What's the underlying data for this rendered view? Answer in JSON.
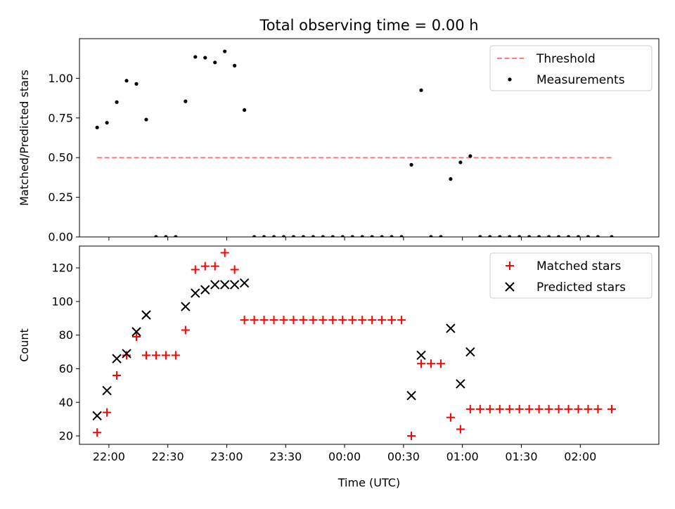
{
  "chart_data": [
    {
      "type": "line",
      "title": "Total observing time = 0.00 h",
      "xlabel": "",
      "ylabel": "Matched/Predicted stars",
      "ylim": [
        0,
        1.25
      ],
      "yticks": [
        "0.00",
        "0.25",
        "0.50",
        "0.75",
        "1.00"
      ],
      "xlim": [
        "21:45",
        "02:40"
      ],
      "legend_position": "top-right",
      "grid": false,
      "series": [
        {
          "name": "Threshold",
          "kind": "dashed-line",
          "color": "#ff7f7f",
          "x": [
            "21:54",
            "02:16"
          ],
          "y": [
            0.5,
            0.5
          ]
        },
        {
          "name": "Measurements",
          "kind": "scatter-dot",
          "color": "#000000",
          "x": [
            "21:54",
            "21:59",
            "22:04",
            "22:09",
            "22:14",
            "22:19",
            "22:24",
            "22:29",
            "22:34",
            "22:39",
            "22:44",
            "22:49",
            "22:54",
            "22:59",
            "23:04",
            "23:09",
            "23:14",
            "23:19",
            "23:24",
            "23:29",
            "23:34",
            "23:39",
            "23:44",
            "23:49",
            "23:54",
            "23:59",
            "00:04",
            "00:09",
            "00:14",
            "00:19",
            "00:24",
            "00:29",
            "00:34",
            "00:39",
            "00:44",
            "00:49",
            "00:54",
            "00:59",
            "01:04",
            "01:09",
            "01:14",
            "01:19",
            "01:24",
            "01:29",
            "01:34",
            "01:39",
            "01:44",
            "01:49",
            "01:54",
            "01:59",
            "02:04",
            "02:09",
            "02:16"
          ],
          "y": [
            0.69,
            0.72,
            0.85,
            0.985,
            0.965,
            0.74,
            0.0,
            0.0,
            0.0,
            0.855,
            1.135,
            1.13,
            1.1,
            1.17,
            1.08,
            0.8,
            0.0,
            0.0,
            0.0,
            0.0,
            0.0,
            0.0,
            0.0,
            0.0,
            0.0,
            0.0,
            0.0,
            0.0,
            0.0,
            0.0,
            0.0,
            0.0,
            0.455,
            0.925,
            0.0,
            0.0,
            0.365,
            0.47,
            0.51,
            0.0,
            0.0,
            0.0,
            0.0,
            0.0,
            0.0,
            0.0,
            0.0,
            0.0,
            0.0,
            0.0,
            0.0,
            0.0,
            0.0
          ]
        }
      ]
    },
    {
      "type": "scatter",
      "title": "",
      "xlabel": "Time (UTC)",
      "ylabel": "Count",
      "ylim": [
        15,
        133
      ],
      "yticks": [
        "20",
        "40",
        "60",
        "80",
        "100",
        "120"
      ],
      "xlim": [
        "21:45",
        "02:40"
      ],
      "xticks": [
        "22:00",
        "22:30",
        "23:00",
        "23:30",
        "00:00",
        "00:30",
        "01:00",
        "01:30",
        "02:00"
      ],
      "legend_position": "top-right",
      "grid": false,
      "series": [
        {
          "name": "Matched stars",
          "kind": "plus",
          "color": "#ff0000",
          "x": [
            "21:54",
            "21:59",
            "22:04",
            "22:09",
            "22:14",
            "22:19",
            "22:24",
            "22:29",
            "22:34",
            "22:39",
            "22:44",
            "22:49",
            "22:54",
            "22:59",
            "23:04",
            "23:09",
            "23:14",
            "23:19",
            "23:24",
            "23:29",
            "23:34",
            "23:39",
            "23:44",
            "23:49",
            "23:54",
            "23:59",
            "00:04",
            "00:09",
            "00:14",
            "00:19",
            "00:24",
            "00:29",
            "00:34",
            "00:39",
            "00:44",
            "00:49",
            "00:54",
            "00:59",
            "01:04",
            "01:09",
            "01:14",
            "01:19",
            "01:24",
            "01:29",
            "01:34",
            "01:39",
            "01:44",
            "01:49",
            "01:54",
            "01:59",
            "02:04",
            "02:09",
            "02:16"
          ],
          "y": [
            22,
            34,
            56,
            68,
            79,
            68,
            68,
            68,
            68,
            83,
            119,
            121,
            121,
            129,
            119,
            89,
            89,
            89,
            89,
            89,
            89,
            89,
            89,
            89,
            89,
            89,
            89,
            89,
            89,
            89,
            89,
            89,
            20,
            63,
            63,
            63,
            31,
            24,
            36,
            36,
            36,
            36,
            36,
            36,
            36,
            36,
            36,
            36,
            36,
            36,
            36,
            36,
            36
          ]
        },
        {
          "name": "Predicted stars",
          "kind": "x",
          "color": "#000000",
          "x": [
            "21:54",
            "21:59",
            "22:04",
            "22:09",
            "22:14",
            "22:19",
            "22:39",
            "22:44",
            "22:49",
            "22:54",
            "22:59",
            "23:04",
            "23:09",
            "00:34",
            "00:39",
            "00:54",
            "00:59",
            "01:04"
          ],
          "y": [
            32,
            47,
            66,
            69,
            82,
            92,
            97,
            105,
            107,
            110,
            110,
            110,
            111,
            44,
            68,
            84,
            51,
            70
          ]
        }
      ]
    }
  ]
}
